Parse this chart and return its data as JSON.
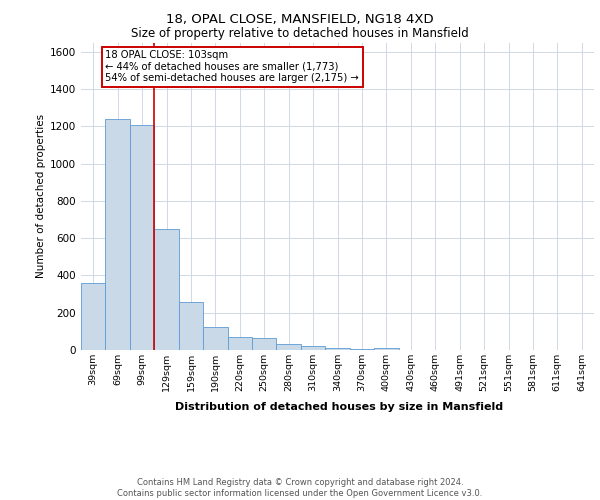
{
  "title1": "18, OPAL CLOSE, MANSFIELD, NG18 4XD",
  "title2": "Size of property relative to detached houses in Mansfield",
  "xlabel": "Distribution of detached houses by size in Mansfield",
  "ylabel": "Number of detached properties",
  "footnote": "Contains HM Land Registry data © Crown copyright and database right 2024.\nContains public sector information licensed under the Open Government Licence v3.0.",
  "annotation_line1": "18 OPAL CLOSE: 103sqm",
  "annotation_line2": "← 44% of detached houses are smaller (1,773)",
  "annotation_line3": "54% of semi-detached houses are larger (2,175) →",
  "bar_color": "#c9d9e8",
  "bar_edge_color": "#5b9bd5",
  "grid_color": "#d0d8e4",
  "vline_color": "#cc0000",
  "annotation_box_color": "#cc0000",
  "categories": [
    "39sqm",
    "69sqm",
    "99sqm",
    "129sqm",
    "159sqm",
    "190sqm",
    "220sqm",
    "250sqm",
    "280sqm",
    "310sqm",
    "340sqm",
    "370sqm",
    "400sqm",
    "430sqm",
    "460sqm",
    "491sqm",
    "521sqm",
    "551sqm",
    "581sqm",
    "611sqm",
    "641sqm"
  ],
  "values": [
    360,
    1240,
    1205,
    650,
    260,
    125,
    70,
    65,
    33,
    20,
    10,
    8,
    12,
    0,
    0,
    0,
    0,
    0,
    0,
    0,
    0
  ],
  "vline_x": 2.5,
  "ylim": [
    0,
    1650
  ],
  "yticks": [
    0,
    200,
    400,
    600,
    800,
    1000,
    1200,
    1400,
    1600
  ],
  "fig_width": 6.0,
  "fig_height": 5.0,
  "dpi": 100
}
